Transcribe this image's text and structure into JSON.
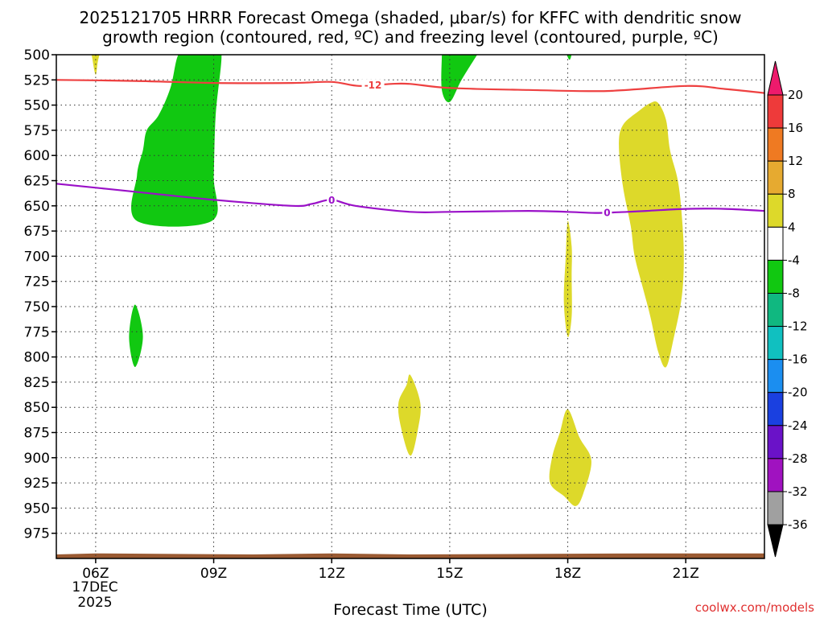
{
  "chart_data": {
    "type": "time-height contour plot",
    "title_line1": "2025121705 HRRR Forecast Omega (shaded, μbar/s) for KFFC with dendritic snow",
    "title_line2": "growth region (contoured, red, ºC) and freezing level (contoured, purple, ºC)",
    "xlabel": "Forecast Time (UTC)",
    "credit": "coolwx.com/models",
    "x_ticks": [
      {
        "hour": 6,
        "label": "06Z"
      },
      {
        "hour": 9,
        "label": "09Z"
      },
      {
        "hour": 12,
        "label": "12Z"
      },
      {
        "hour": 15,
        "label": "15Z"
      },
      {
        "hour": 18,
        "label": "18Z"
      },
      {
        "hour": 21,
        "label": "21Z"
      }
    ],
    "date_label": "17DEC",
    "year_label": "2025",
    "x_range_hours": [
      5,
      23
    ],
    "y_levels": [
      500,
      525,
      550,
      575,
      600,
      625,
      650,
      675,
      700,
      725,
      750,
      775,
      800,
      825,
      850,
      875,
      900,
      925,
      950,
      975
    ],
    "y_range_hPa": [
      500,
      1000
    ],
    "colorbar": {
      "levels": [
        "20",
        "16",
        "12",
        "8",
        "4",
        "-4",
        "-8",
        "-12",
        "-16",
        "-20",
        "-24",
        "-28",
        "-32",
        "-36"
      ],
      "colors": [
        "#ee1a6c",
        "#ee3a3a",
        "#ef7a22",
        "#e6aa30",
        "#ddd92a",
        "#ffffff",
        "#11c811",
        "#10b880",
        "#10c0c0",
        "#1b8ef0",
        "#1a40e0",
        "#6a12c8",
        "#a012c0",
        "#a0a0a0",
        "#000000"
      ]
    },
    "contours": [
      {
        "name": "dendritic snow growth region",
        "value": "-12",
        "color": "#ee4040",
        "label_hour": 13.05,
        "points": [
          [
            5,
            525
          ],
          [
            7,
            526
          ],
          [
            9,
            528
          ],
          [
            11,
            528
          ],
          [
            12,
            527
          ],
          [
            12.7,
            531
          ],
          [
            13.5,
            529
          ],
          [
            14,
            529
          ],
          [
            15,
            533
          ],
          [
            17,
            535
          ],
          [
            19,
            536
          ],
          [
            21,
            531
          ],
          [
            22,
            534
          ],
          [
            23,
            538
          ]
        ]
      },
      {
        "name": "freezing level",
        "value": "0",
        "color": "#9a10c8",
        "label_hour": 12.0,
        "label_hour_2": 19.0,
        "points": [
          [
            5,
            628
          ],
          [
            7,
            636
          ],
          [
            9,
            644
          ],
          [
            11,
            650
          ],
          [
            11.5,
            648
          ],
          [
            12,
            644
          ],
          [
            12.6,
            650
          ],
          [
            14,
            656
          ],
          [
            15,
            656
          ],
          [
            17,
            655
          ],
          [
            18,
            656
          ],
          [
            18.7,
            657
          ],
          [
            19.5,
            656
          ],
          [
            20,
            655
          ],
          [
            21,
            653
          ],
          [
            22,
            653
          ],
          [
            23,
            655
          ]
        ]
      }
    ],
    "regions": [
      {
        "name": "upward omega -4 to -8 (green)",
        "color": "#11c811",
        "points": [
          [
            7.05,
            665
          ],
          [
            7.05,
            620
          ],
          [
            7.2,
            595
          ],
          [
            7.3,
            575
          ],
          [
            7.6,
            560
          ],
          [
            7.9,
            533
          ],
          [
            8.1,
            500
          ],
          [
            8.4,
            495
          ],
          [
            9.0,
            495
          ],
          [
            9.2,
            500
          ],
          [
            9.05,
            560
          ],
          [
            9.0,
            620
          ],
          [
            8.95,
            665
          ]
        ]
      },
      {
        "name": "upward omega -4 to -8 (green)",
        "color": "#11c811",
        "points": [
          [
            14.8,
            495
          ],
          [
            15.8,
            495
          ],
          [
            15.7,
            500
          ],
          [
            15.3,
            525
          ],
          [
            15.0,
            547
          ],
          [
            14.8,
            535
          ],
          [
            14.8,
            500
          ]
        ]
      },
      {
        "name": "upward omega -4 to -8 (green)",
        "color": "#11c811",
        "points": [
          [
            17.9,
            495
          ],
          [
            18.1,
            495
          ],
          [
            18.05,
            505
          ],
          [
            17.95,
            498
          ]
        ]
      },
      {
        "name": "upward omega -4 to -8 (green)",
        "color": "#11c811",
        "points": [
          [
            7.0,
            748
          ],
          [
            7.2,
            780
          ],
          [
            7.0,
            810
          ],
          [
            6.85,
            780
          ]
        ]
      },
      {
        "name": "downward omega 4 to 8 (yellow)",
        "color": "#ddd92a",
        "points": [
          [
            5.9,
            495
          ],
          [
            6.1,
            495
          ],
          [
            6.05,
            508
          ],
          [
            6.0,
            520
          ],
          [
            5.92,
            505
          ]
        ]
      },
      {
        "name": "downward omega 4 to 8 (yellow)",
        "color": "#ddd92a",
        "points": [
          [
            20.3,
            548
          ],
          [
            20.5,
            565
          ],
          [
            20.6,
            595
          ],
          [
            20.8,
            625
          ],
          [
            20.9,
            660
          ],
          [
            20.95,
            700
          ],
          [
            20.9,
            740
          ],
          [
            20.7,
            780
          ],
          [
            20.5,
            810
          ],
          [
            20.3,
            795
          ],
          [
            20.1,
            760
          ],
          [
            19.9,
            730
          ],
          [
            19.7,
            700
          ],
          [
            19.6,
            670
          ],
          [
            19.4,
            630
          ],
          [
            19.3,
            590
          ],
          [
            19.4,
            570
          ],
          [
            19.8,
            556
          ],
          [
            20.1,
            548
          ]
        ]
      },
      {
        "name": "downward omega 4 to 8 (yellow)",
        "color": "#ddd92a",
        "points": [
          [
            18.0,
            665
          ],
          [
            18.1,
            690
          ],
          [
            18.1,
            720
          ],
          [
            18.1,
            760
          ],
          [
            18.0,
            780
          ],
          [
            17.9,
            745
          ],
          [
            17.95,
            700
          ]
        ]
      },
      {
        "name": "downward omega 4 to 8 (yellow)",
        "color": "#ddd92a",
        "points": [
          [
            14.0,
            818
          ],
          [
            14.25,
            845
          ],
          [
            14.2,
            870
          ],
          [
            14.0,
            898
          ],
          [
            13.75,
            868
          ],
          [
            13.7,
            845
          ],
          [
            13.9,
            828
          ]
        ]
      },
      {
        "name": "downward omega 4 to 8 (yellow)",
        "color": "#ddd92a",
        "points": [
          [
            18.0,
            852
          ],
          [
            18.3,
            880
          ],
          [
            18.6,
            903
          ],
          [
            18.4,
            935
          ],
          [
            18.2,
            948
          ],
          [
            17.9,
            938
          ],
          [
            17.55,
            925
          ],
          [
            17.6,
            900
          ],
          [
            17.8,
            875
          ]
        ]
      }
    ],
    "surface_color": "#9a5a32"
  }
}
